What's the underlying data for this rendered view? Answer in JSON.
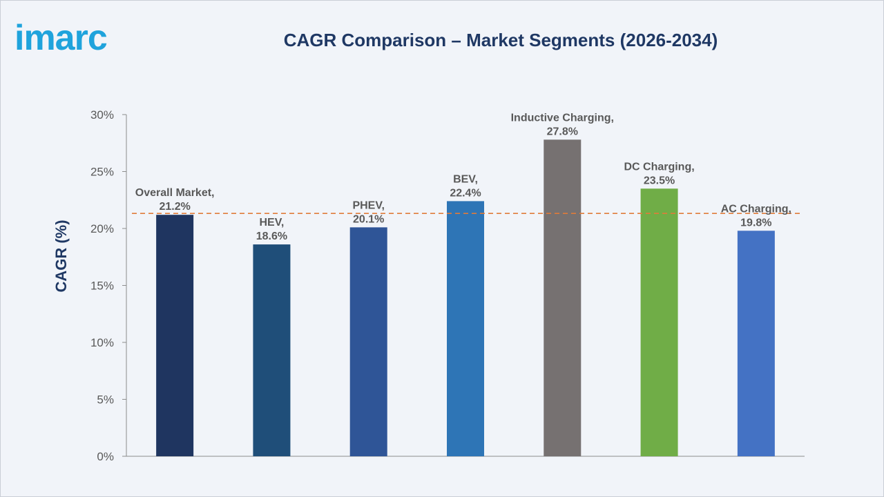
{
  "logo_text": "imarc",
  "colors": {
    "background": "#f1f4f9",
    "title": "#1f3864",
    "logo": "#1fa3dc",
    "reference_line": "#e07b39"
  },
  "chart_data": {
    "type": "bar",
    "title": "CAGR Comparison – Market Segments (2026-2034)",
    "xlabel": "",
    "ylabel": "CAGR (%)",
    "ylim": [
      0,
      30
    ],
    "yticks": [
      0,
      5,
      10,
      15,
      20,
      25,
      30
    ],
    "ytick_labels": [
      "0%",
      "5%",
      "10%",
      "15%",
      "20%",
      "25%",
      "30%"
    ],
    "categories": [
      "Overall Market",
      "HEV",
      "PHEV",
      "BEV",
      "Inductive Charging",
      "DC Charging",
      "AC Charging"
    ],
    "values": [
      21.2,
      18.6,
      20.1,
      22.4,
      27.8,
      23.5,
      19.8
    ],
    "data_labels": [
      [
        "Overall Market,",
        "21.2%"
      ],
      [
        "HEV,",
        "18.6%"
      ],
      [
        "PHEV,",
        "20.1%"
      ],
      [
        "BEV,",
        "22.4%"
      ],
      [
        "Inductive Charging,",
        "27.8%"
      ],
      [
        "DC Charging,",
        "23.5%"
      ],
      [
        "AC Charging,",
        "19.8%"
      ]
    ],
    "bar_colors": [
      "#1f3560",
      "#1f4e79",
      "#2f5597",
      "#2e75b6",
      "#767171",
      "#70ad47",
      "#4472c4"
    ],
    "reference_line": {
      "value": 21.2,
      "style": "dashed"
    },
    "grid": false,
    "legend": "none"
  }
}
